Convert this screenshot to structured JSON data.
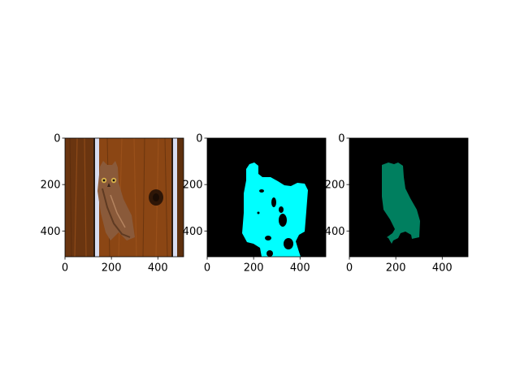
{
  "figure": {
    "background": "#ffffff"
  },
  "chart_data": [
    {
      "type": "image",
      "content": "photo of an owl perched on a wooden wall",
      "xlim": [
        0,
        511
      ],
      "ylim": [
        511,
        0
      ],
      "x_ticks": [
        0,
        200,
        400
      ],
      "y_ticks": [
        0,
        200,
        400
      ],
      "x_tick_labels": [
        "0",
        "200",
        "400"
      ],
      "y_tick_labels": [
        "0",
        "200",
        "400"
      ],
      "colors": {
        "wood": "#7a3e12",
        "wood_light": "#a3571e",
        "slat": "#d8dcef",
        "owl": "#8a5a3a"
      }
    },
    {
      "type": "image",
      "content": "segmentation mask (cyan region on black)",
      "xlim": [
        0,
        511
      ],
      "ylim": [
        511,
        0
      ],
      "x_ticks": [
        0,
        200,
        400
      ],
      "y_ticks": [
        0,
        200,
        400
      ],
      "x_tick_labels": [
        "0",
        "200",
        "400"
      ],
      "y_tick_labels": [
        "0",
        "200",
        "400"
      ],
      "colors": {
        "background": "#000000",
        "mask": "#00ffff"
      }
    },
    {
      "type": "image",
      "content": "segmentation mask (owl silhouette, green on black)",
      "xlim": [
        0,
        511
      ],
      "ylim": [
        511,
        0
      ],
      "x_ticks": [
        0,
        200,
        400
      ],
      "y_ticks": [
        0,
        200,
        400
      ],
      "x_tick_labels": [
        "0",
        "200",
        "400"
      ],
      "y_tick_labels": [
        "0",
        "200",
        "400"
      ],
      "colors": {
        "background": "#000000",
        "mask": "#007f5f"
      }
    }
  ]
}
